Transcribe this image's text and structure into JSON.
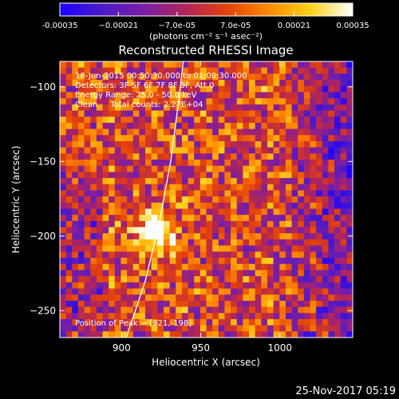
{
  "chart_data": {
    "type": "heatmap",
    "title": "Reconstructed RHESSI Image",
    "xlabel": "Heliocentric X (arcsec)",
    "ylabel": "Heliocentric Y (arcsec)",
    "xlim": [
      861,
      1046
    ],
    "ylim": [
      -268,
      -83
    ],
    "x_ticks": [
      900,
      950,
      1000
    ],
    "x_tick_labels": [
      "900",
      "950",
      "1000"
    ],
    "y_ticks": [
      -100,
      -150,
      -200,
      -250
    ],
    "y_tick_labels": [
      "−100",
      "−150",
      "−200",
      "−250"
    ],
    "colorbar": {
      "range": [
        -0.00035,
        0.00035
      ],
      "tick_labels": [
        "-0.00035",
        "−0.00021",
        "−7.0e-05",
        "7.0e-05",
        "0.00021",
        "0.00035"
      ],
      "unit_label": "(photons cm⁻² s⁻¹ asec⁻²)",
      "colors": [
        "#1c00ff",
        "#4b19c8",
        "#7a1ea6",
        "#b0245a",
        "#e4410a",
        "#ff8a00",
        "#ffd21a",
        "#ffffff"
      ]
    },
    "annotations": [
      "18-Jun-2015 00:50:30.000 to 01:00:30.000",
      "Detectors: 3F 5F 6F 7F 8F 9F, Att 0",
      "Energy Range: 25.0 - 50.0 keV",
      "Clean     Total counts: 2.27E+04"
    ],
    "peak_label": "Position of Peak = [921,-198]",
    "peak": [
      921,
      -198
    ],
    "limb_curve": [
      [
        903,
        -268
      ],
      [
        915,
        -230
      ],
      [
        924,
        -190
      ],
      [
        931,
        -150
      ],
      [
        936,
        -110
      ],
      [
        939,
        -83
      ]
    ]
  },
  "footer_date": "25-Nov-2017 05:19",
  "colors": {
    "background": "#000000",
    "foreground": "#ffffff"
  }
}
